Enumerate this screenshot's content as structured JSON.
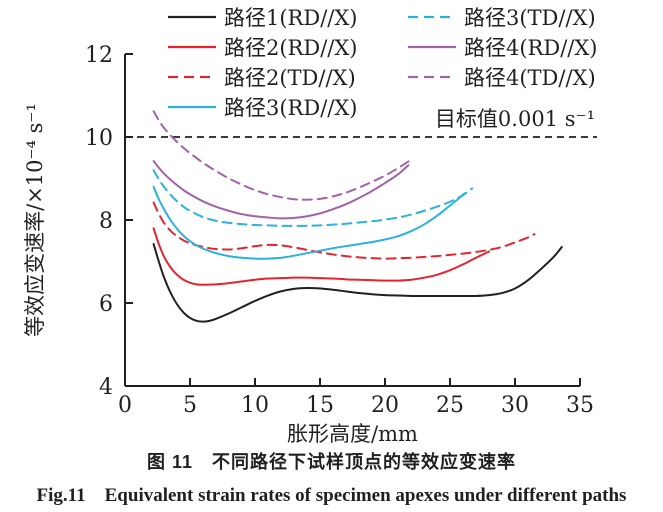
{
  "figure": {
    "caption_cn": "图 11　不同路径下试样顶点的等效应变速率",
    "caption_en": "Fig.11　Equivalent strain rates of specimen apexes under different paths"
  },
  "colors": {
    "axis": "#231f20",
    "text": "#231f20",
    "background": "#ffffff"
  },
  "chart_data": {
    "type": "line",
    "title": "",
    "xlabel": "胀形高度/mm",
    "ylabel": "等效应变速率/×10⁻⁴ s⁻¹",
    "xlim": [
      0,
      35
    ],
    "ylim": [
      4,
      12
    ],
    "xticks": [
      0,
      5,
      10,
      15,
      20,
      25,
      30,
      35
    ],
    "yticks": [
      4,
      6,
      8,
      10,
      12
    ],
    "grid": false,
    "legend_position": "top-two-columns",
    "target_line": {
      "y": 10,
      "label": "目标值0.001 s⁻¹",
      "color": "#231f20",
      "style": "dashed"
    },
    "series": [
      {
        "name": "路径1(RD//X)",
        "color": "#231f20",
        "dashed": false,
        "points": [
          [
            2.2,
            7.42
          ],
          [
            2.6,
            7.0
          ],
          [
            3,
            6.62
          ],
          [
            3.5,
            6.25
          ],
          [
            4,
            5.97
          ],
          [
            4.5,
            5.77
          ],
          [
            5,
            5.64
          ],
          [
            5.5,
            5.57
          ],
          [
            6,
            5.55
          ],
          [
            6.5,
            5.57
          ],
          [
            7,
            5.62
          ],
          [
            8,
            5.75
          ],
          [
            9,
            5.9
          ],
          [
            10,
            6.05
          ],
          [
            11,
            6.18
          ],
          [
            12,
            6.28
          ],
          [
            13,
            6.34
          ],
          [
            14,
            6.36
          ],
          [
            15,
            6.35
          ],
          [
            16,
            6.32
          ],
          [
            17,
            6.28
          ],
          [
            18,
            6.24
          ],
          [
            19,
            6.21
          ],
          [
            20,
            6.19
          ],
          [
            21,
            6.18
          ],
          [
            22,
            6.17
          ],
          [
            23,
            6.17
          ],
          [
            24,
            6.17
          ],
          [
            25,
            6.17
          ],
          [
            26,
            6.17
          ],
          [
            27,
            6.17
          ],
          [
            28,
            6.19
          ],
          [
            29,
            6.24
          ],
          [
            30,
            6.35
          ],
          [
            31,
            6.55
          ],
          [
            32,
            6.82
          ],
          [
            33,
            7.12
          ],
          [
            33.6,
            7.35
          ]
        ]
      },
      {
        "name": "路径2(RD//X)",
        "color": "#e32430",
        "dashed": false,
        "points": [
          [
            2.2,
            7.8
          ],
          [
            2.6,
            7.42
          ],
          [
            3,
            7.12
          ],
          [
            3.5,
            6.86
          ],
          [
            4,
            6.68
          ],
          [
            4.5,
            6.56
          ],
          [
            5,
            6.49
          ],
          [
            5.5,
            6.45
          ],
          [
            6,
            6.44
          ],
          [
            7,
            6.45
          ],
          [
            8,
            6.48
          ],
          [
            9,
            6.52
          ],
          [
            10,
            6.56
          ],
          [
            11,
            6.59
          ],
          [
            12,
            6.6
          ],
          [
            13,
            6.61
          ],
          [
            14,
            6.61
          ],
          [
            15,
            6.6
          ],
          [
            16,
            6.59
          ],
          [
            17,
            6.57
          ],
          [
            18,
            6.56
          ],
          [
            19,
            6.55
          ],
          [
            20,
            6.54
          ],
          [
            21,
            6.54
          ],
          [
            22,
            6.56
          ],
          [
            23,
            6.61
          ],
          [
            24,
            6.68
          ],
          [
            25,
            6.79
          ],
          [
            26,
            6.93
          ],
          [
            27,
            7.09
          ],
          [
            28,
            7.24
          ]
        ]
      },
      {
        "name": "路径2(TD//X)",
        "color": "#e32430",
        "dashed": true,
        "points": [
          [
            2.2,
            8.42
          ],
          [
            2.6,
            8.15
          ],
          [
            3,
            7.93
          ],
          [
            3.5,
            7.74
          ],
          [
            4,
            7.61
          ],
          [
            4.5,
            7.51
          ],
          [
            5,
            7.44
          ],
          [
            5.5,
            7.39
          ],
          [
            6,
            7.35
          ],
          [
            6.5,
            7.32
          ],
          [
            7,
            7.3
          ],
          [
            8,
            7.29
          ],
          [
            9,
            7.32
          ],
          [
            10,
            7.37
          ],
          [
            11,
            7.4
          ],
          [
            12,
            7.39
          ],
          [
            13,
            7.34
          ],
          [
            14,
            7.28
          ],
          [
            15,
            7.22
          ],
          [
            16,
            7.17
          ],
          [
            17,
            7.13
          ],
          [
            18,
            7.1
          ],
          [
            19,
            7.08
          ],
          [
            20,
            7.07
          ],
          [
            21,
            7.08
          ],
          [
            22,
            7.09
          ],
          [
            23,
            7.11
          ],
          [
            24,
            7.13
          ],
          [
            25,
            7.16
          ],
          [
            26,
            7.19
          ],
          [
            27,
            7.23
          ],
          [
            28,
            7.28
          ],
          [
            29,
            7.35
          ],
          [
            30,
            7.46
          ],
          [
            31,
            7.58
          ],
          [
            31.5,
            7.66
          ]
        ]
      },
      {
        "name": "路径3(RD//X)",
        "color": "#29b2de",
        "dashed": false,
        "points": [
          [
            2.2,
            8.8
          ],
          [
            2.6,
            8.5
          ],
          [
            3,
            8.26
          ],
          [
            3.5,
            8.0
          ],
          [
            4,
            7.79
          ],
          [
            4.5,
            7.62
          ],
          [
            5,
            7.49
          ],
          [
            5.5,
            7.39
          ],
          [
            6,
            7.31
          ],
          [
            7,
            7.2
          ],
          [
            8,
            7.13
          ],
          [
            9,
            7.09
          ],
          [
            10,
            7.07
          ],
          [
            11,
            7.07
          ],
          [
            12,
            7.09
          ],
          [
            13,
            7.14
          ],
          [
            14,
            7.2
          ],
          [
            15,
            7.26
          ],
          [
            16,
            7.32
          ],
          [
            17,
            7.37
          ],
          [
            18,
            7.42
          ],
          [
            19,
            7.47
          ],
          [
            20,
            7.53
          ],
          [
            21,
            7.61
          ],
          [
            22,
            7.73
          ],
          [
            23,
            7.89
          ],
          [
            24,
            8.1
          ],
          [
            25,
            8.35
          ],
          [
            25.6,
            8.5
          ],
          [
            26.1,
            8.64
          ]
        ]
      },
      {
        "name": "路径3(TD//X)",
        "color": "#29b2de",
        "dashed": true,
        "points": [
          [
            2.2,
            9.2
          ],
          [
            2.6,
            8.98
          ],
          [
            3,
            8.8
          ],
          [
            3.5,
            8.61
          ],
          [
            4,
            8.45
          ],
          [
            4.5,
            8.32
          ],
          [
            5,
            8.22
          ],
          [
            6,
            8.07
          ],
          [
            7,
            7.98
          ],
          [
            8,
            7.93
          ],
          [
            9,
            7.9
          ],
          [
            10,
            7.88
          ],
          [
            11,
            7.87
          ],
          [
            12,
            7.86
          ],
          [
            13,
            7.86
          ],
          [
            14,
            7.86
          ],
          [
            15,
            7.87
          ],
          [
            16,
            7.89
          ],
          [
            17,
            7.91
          ],
          [
            18,
            7.94
          ],
          [
            19,
            7.97
          ],
          [
            20,
            8.01
          ],
          [
            21,
            8.06
          ],
          [
            22,
            8.13
          ],
          [
            23,
            8.22
          ],
          [
            24,
            8.32
          ],
          [
            25,
            8.44
          ],
          [
            26,
            8.6
          ],
          [
            26.7,
            8.76
          ]
        ]
      },
      {
        "name": "路径4(RD//X)",
        "color": "#a361a8",
        "dashed": false,
        "points": [
          [
            2.2,
            9.42
          ],
          [
            2.6,
            9.26
          ],
          [
            3,
            9.12
          ],
          [
            3.5,
            8.97
          ],
          [
            4,
            8.84
          ],
          [
            4.5,
            8.72
          ],
          [
            5,
            8.62
          ],
          [
            6,
            8.45
          ],
          [
            7,
            8.32
          ],
          [
            8,
            8.22
          ],
          [
            9,
            8.14
          ],
          [
            10,
            8.09
          ],
          [
            11,
            8.06
          ],
          [
            12,
            8.04
          ],
          [
            13,
            8.05
          ],
          [
            14,
            8.09
          ],
          [
            15,
            8.16
          ],
          [
            16,
            8.26
          ],
          [
            17,
            8.38
          ],
          [
            18,
            8.53
          ],
          [
            19,
            8.7
          ],
          [
            20,
            8.89
          ],
          [
            21,
            9.1
          ],
          [
            21.8,
            9.32
          ]
        ]
      },
      {
        "name": "路径4(TD//X)",
        "color": "#a361a8",
        "dashed": true,
        "points": [
          [
            2.2,
            10.62
          ],
          [
            2.6,
            10.4
          ],
          [
            3,
            10.22
          ],
          [
            3.5,
            10.04
          ],
          [
            4,
            9.88
          ],
          [
            4.5,
            9.74
          ],
          [
            5,
            9.61
          ],
          [
            6,
            9.38
          ],
          [
            7,
            9.18
          ],
          [
            8,
            9.0
          ],
          [
            9,
            8.85
          ],
          [
            10,
            8.72
          ],
          [
            11,
            8.62
          ],
          [
            12,
            8.55
          ],
          [
            13,
            8.5
          ],
          [
            14,
            8.49
          ],
          [
            15,
            8.51
          ],
          [
            16,
            8.57
          ],
          [
            17,
            8.66
          ],
          [
            18,
            8.78
          ],
          [
            19,
            8.92
          ],
          [
            20,
            9.07
          ],
          [
            21,
            9.25
          ],
          [
            22,
            9.45
          ]
        ]
      }
    ]
  }
}
